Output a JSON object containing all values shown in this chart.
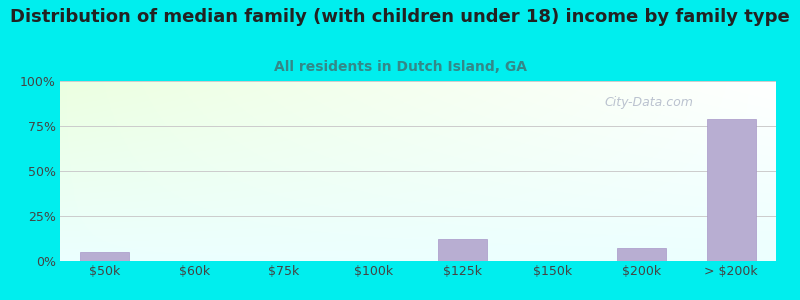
{
  "title": "Distribution of median family (with children under 18) income by family type",
  "subtitle": "All residents in Dutch Island, GA",
  "categories": [
    "$50k",
    "$60k",
    "$75k",
    "$100k",
    "$125k",
    "$150k",
    "$200k",
    "> $200k"
  ],
  "values": [
    5.0,
    0.0,
    0.0,
    0.0,
    12.0,
    0.0,
    7.0,
    79.0
  ],
  "bar_color": "#b8aed2",
  "bar_edge_color": "#a898c8",
  "title_color": "#222222",
  "subtitle_color": "#338888",
  "outer_bg_color": "#00eeee",
  "ytick_labels": [
    "0%",
    "25%",
    "50%",
    "75%",
    "100%"
  ],
  "ytick_values": [
    0,
    25,
    50,
    75,
    100
  ],
  "ylim": [
    0,
    100
  ],
  "title_fontsize": 13,
  "subtitle_fontsize": 10,
  "tick_fontsize": 9,
  "watermark_text": "City-Data.com",
  "watermark_color": "#b0b8c8",
  "grid_color": "#cccccc"
}
